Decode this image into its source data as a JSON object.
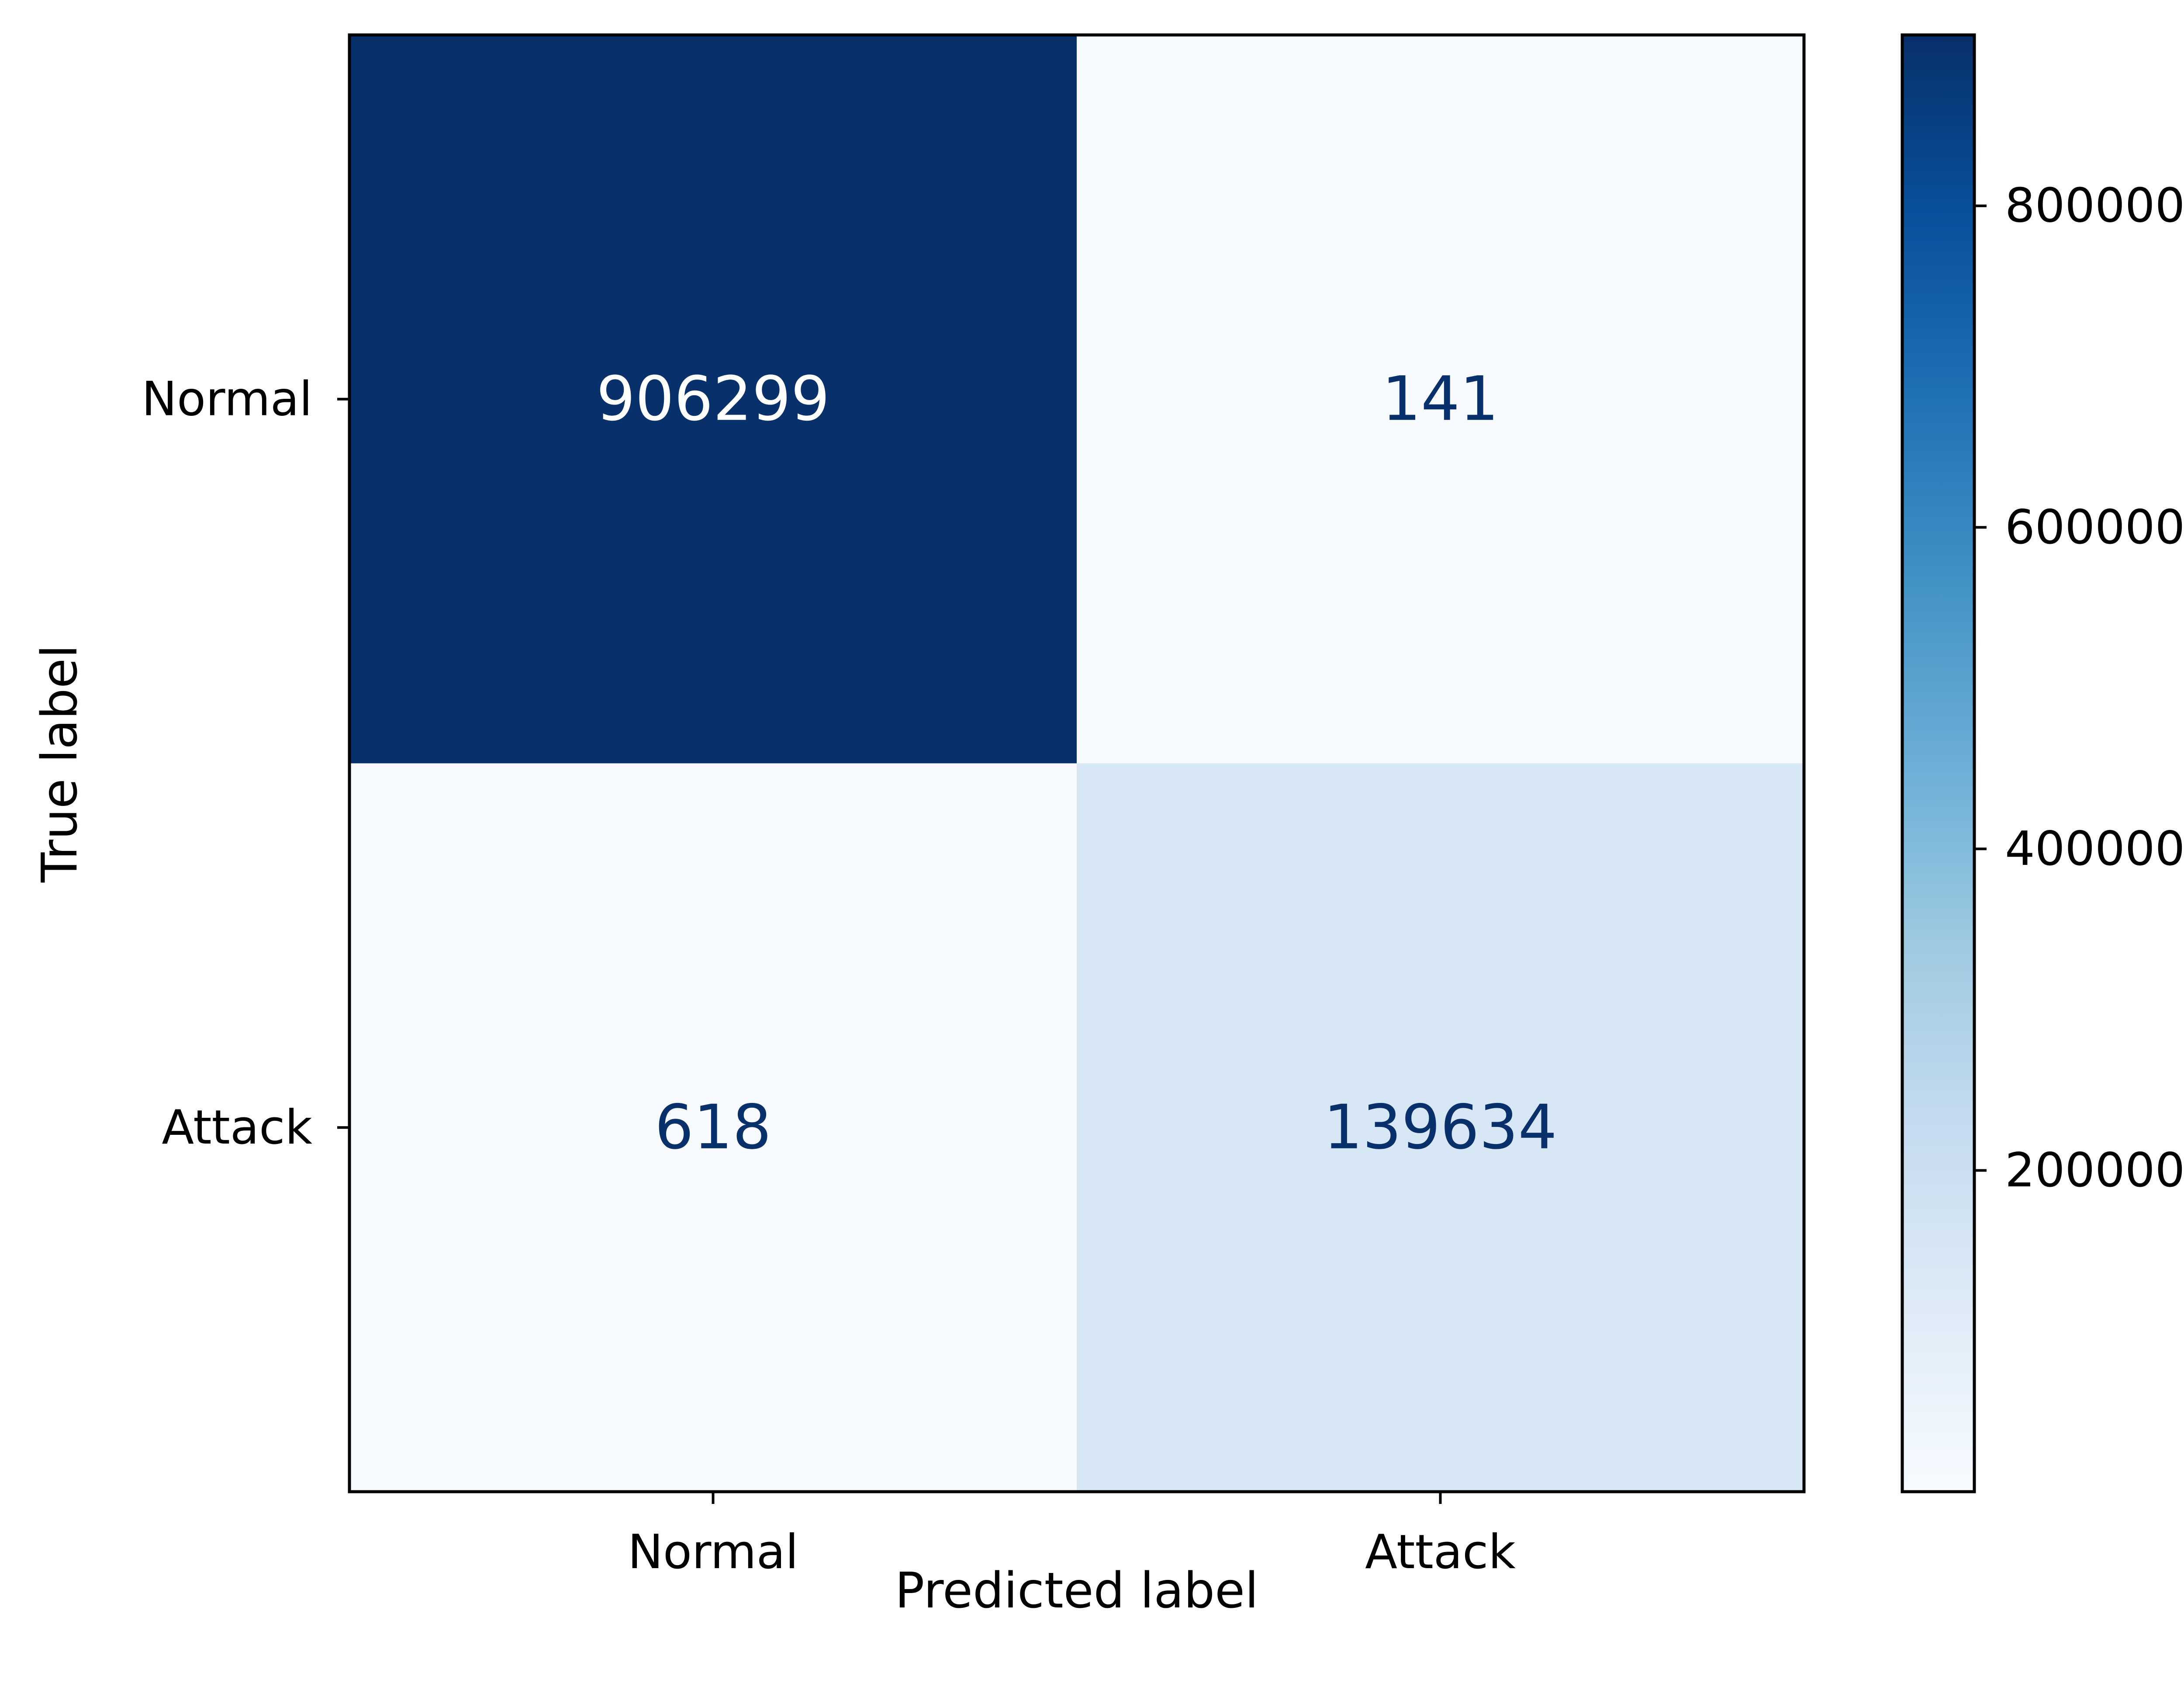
{
  "chart_data": {
    "type": "heatmap",
    "title": "",
    "xlabel": "Predicted label",
    "ylabel": "True label",
    "x_categories": [
      "Normal",
      "Attack"
    ],
    "y_categories": [
      "Normal",
      "Attack"
    ],
    "matrix": [
      [
        906299,
        141
      ],
      [
        618,
        139634
      ]
    ],
    "colormap": "Blues",
    "colorbar": {
      "min": 141,
      "max": 906299,
      "ticks": [
        200000,
        400000,
        600000,
        800000
      ],
      "tick_labels": [
        "200000",
        "400000",
        "600000",
        "800000"
      ]
    },
    "grid": false,
    "colors": {
      "high_text": "#ffffff",
      "low_text": "#08306b",
      "axis": "#000000"
    }
  }
}
